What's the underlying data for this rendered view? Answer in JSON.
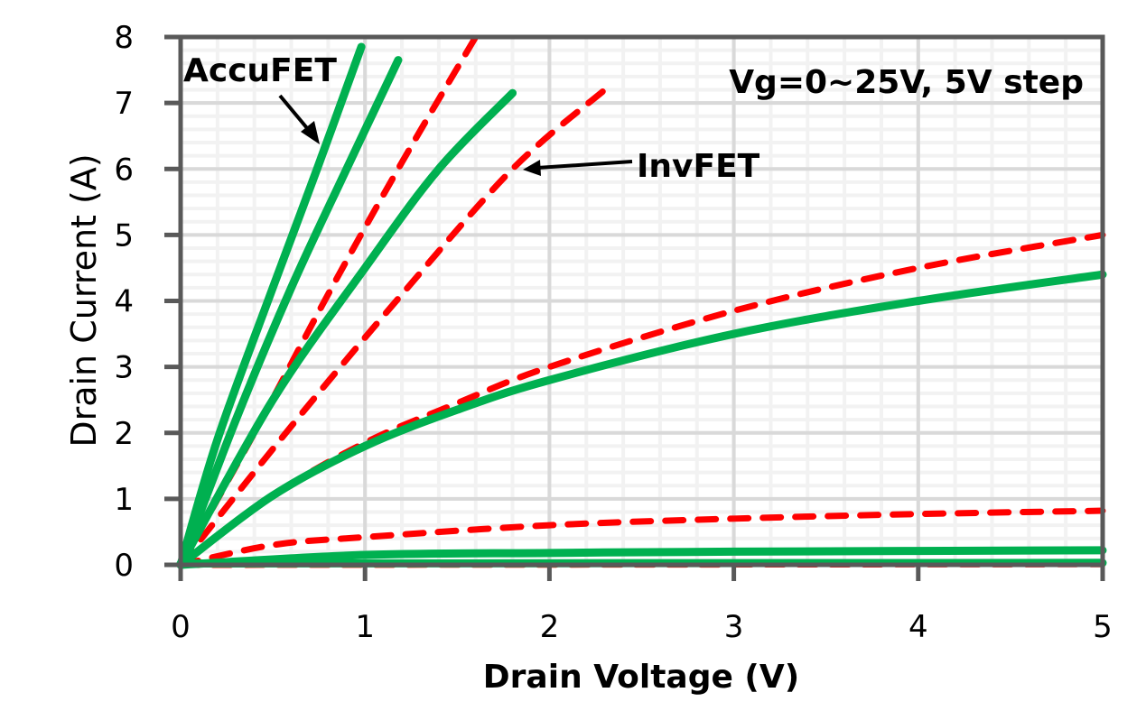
{
  "chart_data": {
    "type": "line",
    "title": "",
    "xlabel": "Drain Voltage (V)",
    "ylabel": "Drain Current (A)",
    "xlim": [
      0,
      5
    ],
    "ylim": [
      0,
      8
    ],
    "xticks": [
      "0",
      "1",
      "2",
      "3",
      "4",
      "5"
    ],
    "yticks": [
      "0",
      "1",
      "2",
      "3",
      "4",
      "5",
      "6",
      "7",
      "8"
    ],
    "grid": {
      "major": true,
      "minor": true
    },
    "colors": {
      "AccuFET": "#00b050",
      "InvFET": "#ff0000",
      "axis": "#595959",
      "major_grid": "#d9d9d9",
      "minor_grid": "#f2f2f2"
    },
    "annotations": {
      "accufet": "AccuFET",
      "invfet": "InvFET",
      "condition": "Vg=0~25V, 5V step"
    },
    "series": [
      {
        "group": "AccuFET",
        "style": "solid",
        "points": [
          [
            0,
            0
          ],
          [
            0.2,
            1.9
          ],
          [
            0.5,
            4.2
          ],
          [
            0.74,
            6.0
          ],
          [
            0.98,
            7.85
          ]
        ]
      },
      {
        "group": "AccuFET",
        "style": "solid",
        "points": [
          [
            0,
            0
          ],
          [
            0.3,
            2.2
          ],
          [
            0.6,
            4.2
          ],
          [
            0.9,
            6.0
          ],
          [
            1.18,
            7.65
          ]
        ]
      },
      {
        "group": "AccuFET",
        "style": "solid",
        "points": [
          [
            0,
            0
          ],
          [
            0.5,
            2.5
          ],
          [
            1,
            4.5
          ],
          [
            1.4,
            6.0
          ],
          [
            1.8,
            7.15
          ]
        ]
      },
      {
        "group": "AccuFET",
        "style": "solid",
        "points": [
          [
            0,
            0
          ],
          [
            0.5,
            1.05
          ],
          [
            1,
            1.8
          ],
          [
            1.5,
            2.35
          ],
          [
            2,
            2.8
          ],
          [
            3,
            3.5
          ],
          [
            4,
            4.0
          ],
          [
            5,
            4.4
          ]
        ]
      },
      {
        "group": "AccuFET",
        "style": "solid",
        "points": [
          [
            0,
            0
          ],
          [
            1,
            0.15
          ],
          [
            2,
            0.18
          ],
          [
            3,
            0.2
          ],
          [
            5,
            0.22
          ]
        ]
      },
      {
        "group": "AccuFET",
        "style": "solid",
        "points": [
          [
            0,
            0.02
          ],
          [
            5,
            0.03
          ]
        ]
      },
      {
        "group": "InvFET",
        "style": "dashed",
        "points": [
          [
            0,
            0
          ],
          [
            0.4,
            2.0
          ],
          [
            0.8,
            4.1
          ],
          [
            1.2,
            6.1
          ],
          [
            1.6,
            8.0
          ]
        ]
      },
      {
        "group": "InvFET",
        "style": "dashed",
        "points": [
          [
            0,
            0
          ],
          [
            0.6,
            2.1
          ],
          [
            1.2,
            4.1
          ],
          [
            1.8,
            6.0
          ],
          [
            2.3,
            7.2
          ]
        ]
      },
      {
        "group": "InvFET",
        "style": "dashed",
        "points": [
          [
            0,
            0
          ],
          [
            0.5,
            1.05
          ],
          [
            1,
            1.85
          ],
          [
            1.5,
            2.45
          ],
          [
            2,
            3.0
          ],
          [
            3,
            3.85
          ],
          [
            4,
            4.5
          ],
          [
            5,
            5.0
          ]
        ]
      },
      {
        "group": "InvFET",
        "style": "dashed",
        "points": [
          [
            0,
            0
          ],
          [
            0.5,
            0.3
          ],
          [
            1,
            0.42
          ],
          [
            2,
            0.6
          ],
          [
            3,
            0.7
          ],
          [
            4,
            0.77
          ],
          [
            5,
            0.82
          ]
        ]
      },
      {
        "group": "InvFET",
        "style": "dashed",
        "points": [
          [
            0,
            0
          ],
          [
            5,
            0.01
          ]
        ]
      }
    ]
  }
}
